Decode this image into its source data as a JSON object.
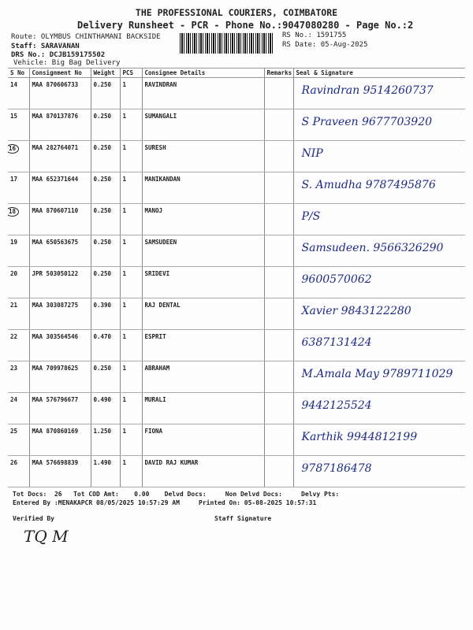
{
  "header": {
    "company": "THE PROFESSIONAL COURIERS, COIMBATORE",
    "title": "Delivery Runsheet - PCR - Phone No.:9047080280 - Page No.:2",
    "route": "Route: OLYMBUS CHINTHAMANI BACKSIDE",
    "staff": "Staff: SARAVANAN",
    "drs": "DRS No.: DCJB159175502",
    "vehicle": "Vehicle: Big Bag Delivery",
    "rs_no": "RS No.: 1591755",
    "rs_date": "RS Date: 05-Aug-2025"
  },
  "columns": [
    "S No",
    "Consignment No",
    "Weight",
    "PCS",
    "Consignee Details",
    "Remarks",
    "Seal & Signature"
  ],
  "rows": [
    {
      "sno": "14",
      "cn": "MAA 870606733",
      "wt": "0.250",
      "pcs": "1",
      "name": "RAVINDRAN",
      "sig": "Ravindran 9514260737",
      "circled": false
    },
    {
      "sno": "15",
      "cn": "MAA 870137876",
      "wt": "0.250",
      "pcs": "1",
      "name": "SUMANGALI",
      "sig": "S Praveen 9677703920",
      "circled": false
    },
    {
      "sno": "16",
      "cn": "MAA 282764071",
      "wt": "0.250",
      "pcs": "1",
      "name": "SURESH",
      "sig": "NIP",
      "circled": true
    },
    {
      "sno": "17",
      "cn": "MAA 652371644",
      "wt": "0.250",
      "pcs": "1",
      "name": "MANIKANDAN",
      "sig": "S. Amudha 9787495876",
      "circled": false
    },
    {
      "sno": "18",
      "cn": "MAA 870607110",
      "wt": "0.250",
      "pcs": "1",
      "name": "MANOJ",
      "sig": "P/S",
      "circled": true
    },
    {
      "sno": "19",
      "cn": "MAA 650563675",
      "wt": "0.250",
      "pcs": "1",
      "name": "SAMSUDEEN",
      "sig": "Samsudeen. 9566326290",
      "circled": false
    },
    {
      "sno": "20",
      "cn": "JPR 503050122",
      "wt": "0.250",
      "pcs": "1",
      "name": "SRIDEVI",
      "sig": "9600570062",
      "circled": false
    },
    {
      "sno": "21",
      "cn": "MAA 303087275",
      "wt": "0.390",
      "pcs": "1",
      "name": "RAJ DENTAL",
      "sig": "Xavier 9843122280",
      "circled": false
    },
    {
      "sno": "22",
      "cn": "MAA 303564546",
      "wt": "0.470",
      "pcs": "1",
      "name": "ESPRIT",
      "sig": "6387131424",
      "circled": false
    },
    {
      "sno": "23",
      "cn": "MAA 709978625",
      "wt": "0.250",
      "pcs": "1",
      "name": "ABRAHAM",
      "sig": "M.Amala May 9789711029",
      "circled": false
    },
    {
      "sno": "24",
      "cn": "MAA 576796677",
      "wt": "0.490",
      "pcs": "1",
      "name": "MURALI",
      "sig": "9442125524",
      "circled": false
    },
    {
      "sno": "25",
      "cn": "MAA 870860169",
      "wt": "1.250",
      "pcs": "1",
      "name": "FIONA",
      "sig": "Karthik 9944812199",
      "circled": false
    },
    {
      "sno": "26",
      "cn": "MAA 576698839",
      "wt": "1.490",
      "pcs": "1",
      "name": "DAVID RAJ KUMAR",
      "sig": "9787186478",
      "circled": false
    }
  ],
  "footer": {
    "line1": "Tot Docs:  26   Tot COD Amt:    0.00    Delvd Docs:     Non Delvd Docs:     Delvy Pts:",
    "line2": "Entered By :MENAKAPCR 08/05/2025 10:57:29 AM     Printed On: 05-08-2025 10:57:31",
    "verified": "Verified By",
    "staff_sig": "Staff Signature",
    "verified_sig": "TQ M"
  }
}
